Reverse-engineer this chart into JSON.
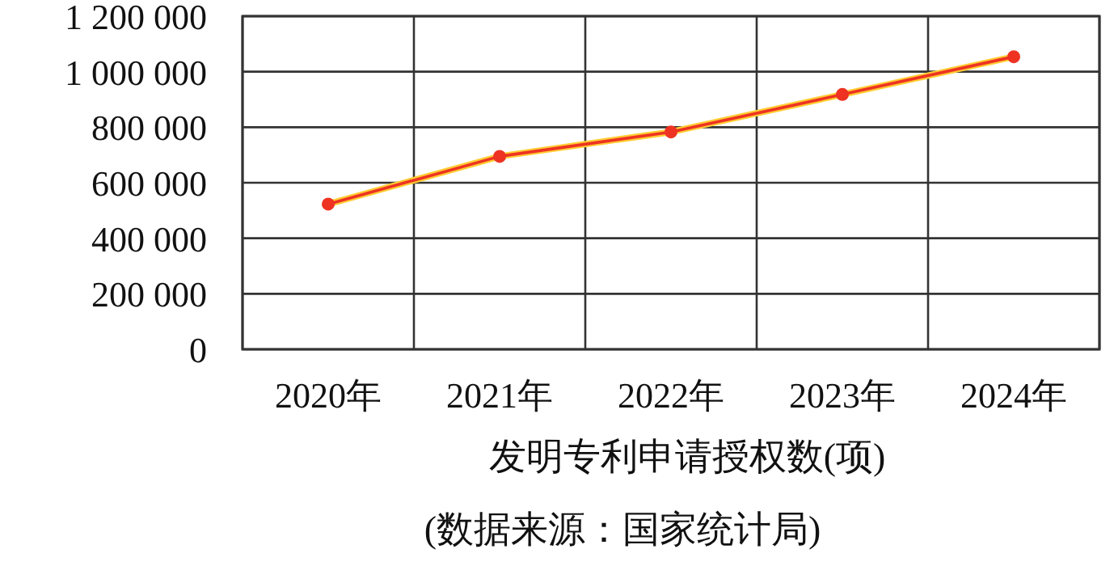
{
  "chart_data": {
    "type": "line",
    "categories": [
      "2020年",
      "2021年",
      "2022年",
      "2023年",
      "2024年"
    ],
    "series": [
      {
        "color": "#ee3322",
        "values": [
          523000,
          695000,
          783000,
          918000,
          1054000
        ]
      }
    ],
    "ylim": [
      0,
      1200000
    ],
    "yticks": [
      0,
      {
        "value": 200000,
        "label": "200 000"
      },
      {
        "value": 400000,
        "label": "400 000"
      },
      {
        "value": 600000,
        "label": "600 000"
      },
      {
        "value": 800000,
        "label": "800 000"
      },
      {
        "value": 1000000,
        "label": "1 000 000"
      },
      {
        "value": 1200000,
        "label": "1 200 000"
      }
    ],
    "grid": true,
    "marker": "circle",
    "line_style": "solid",
    "xlabel": "发明专利申请授权数(项)",
    "annotations": [
      "(数据来源：国家统计局)"
    ]
  }
}
